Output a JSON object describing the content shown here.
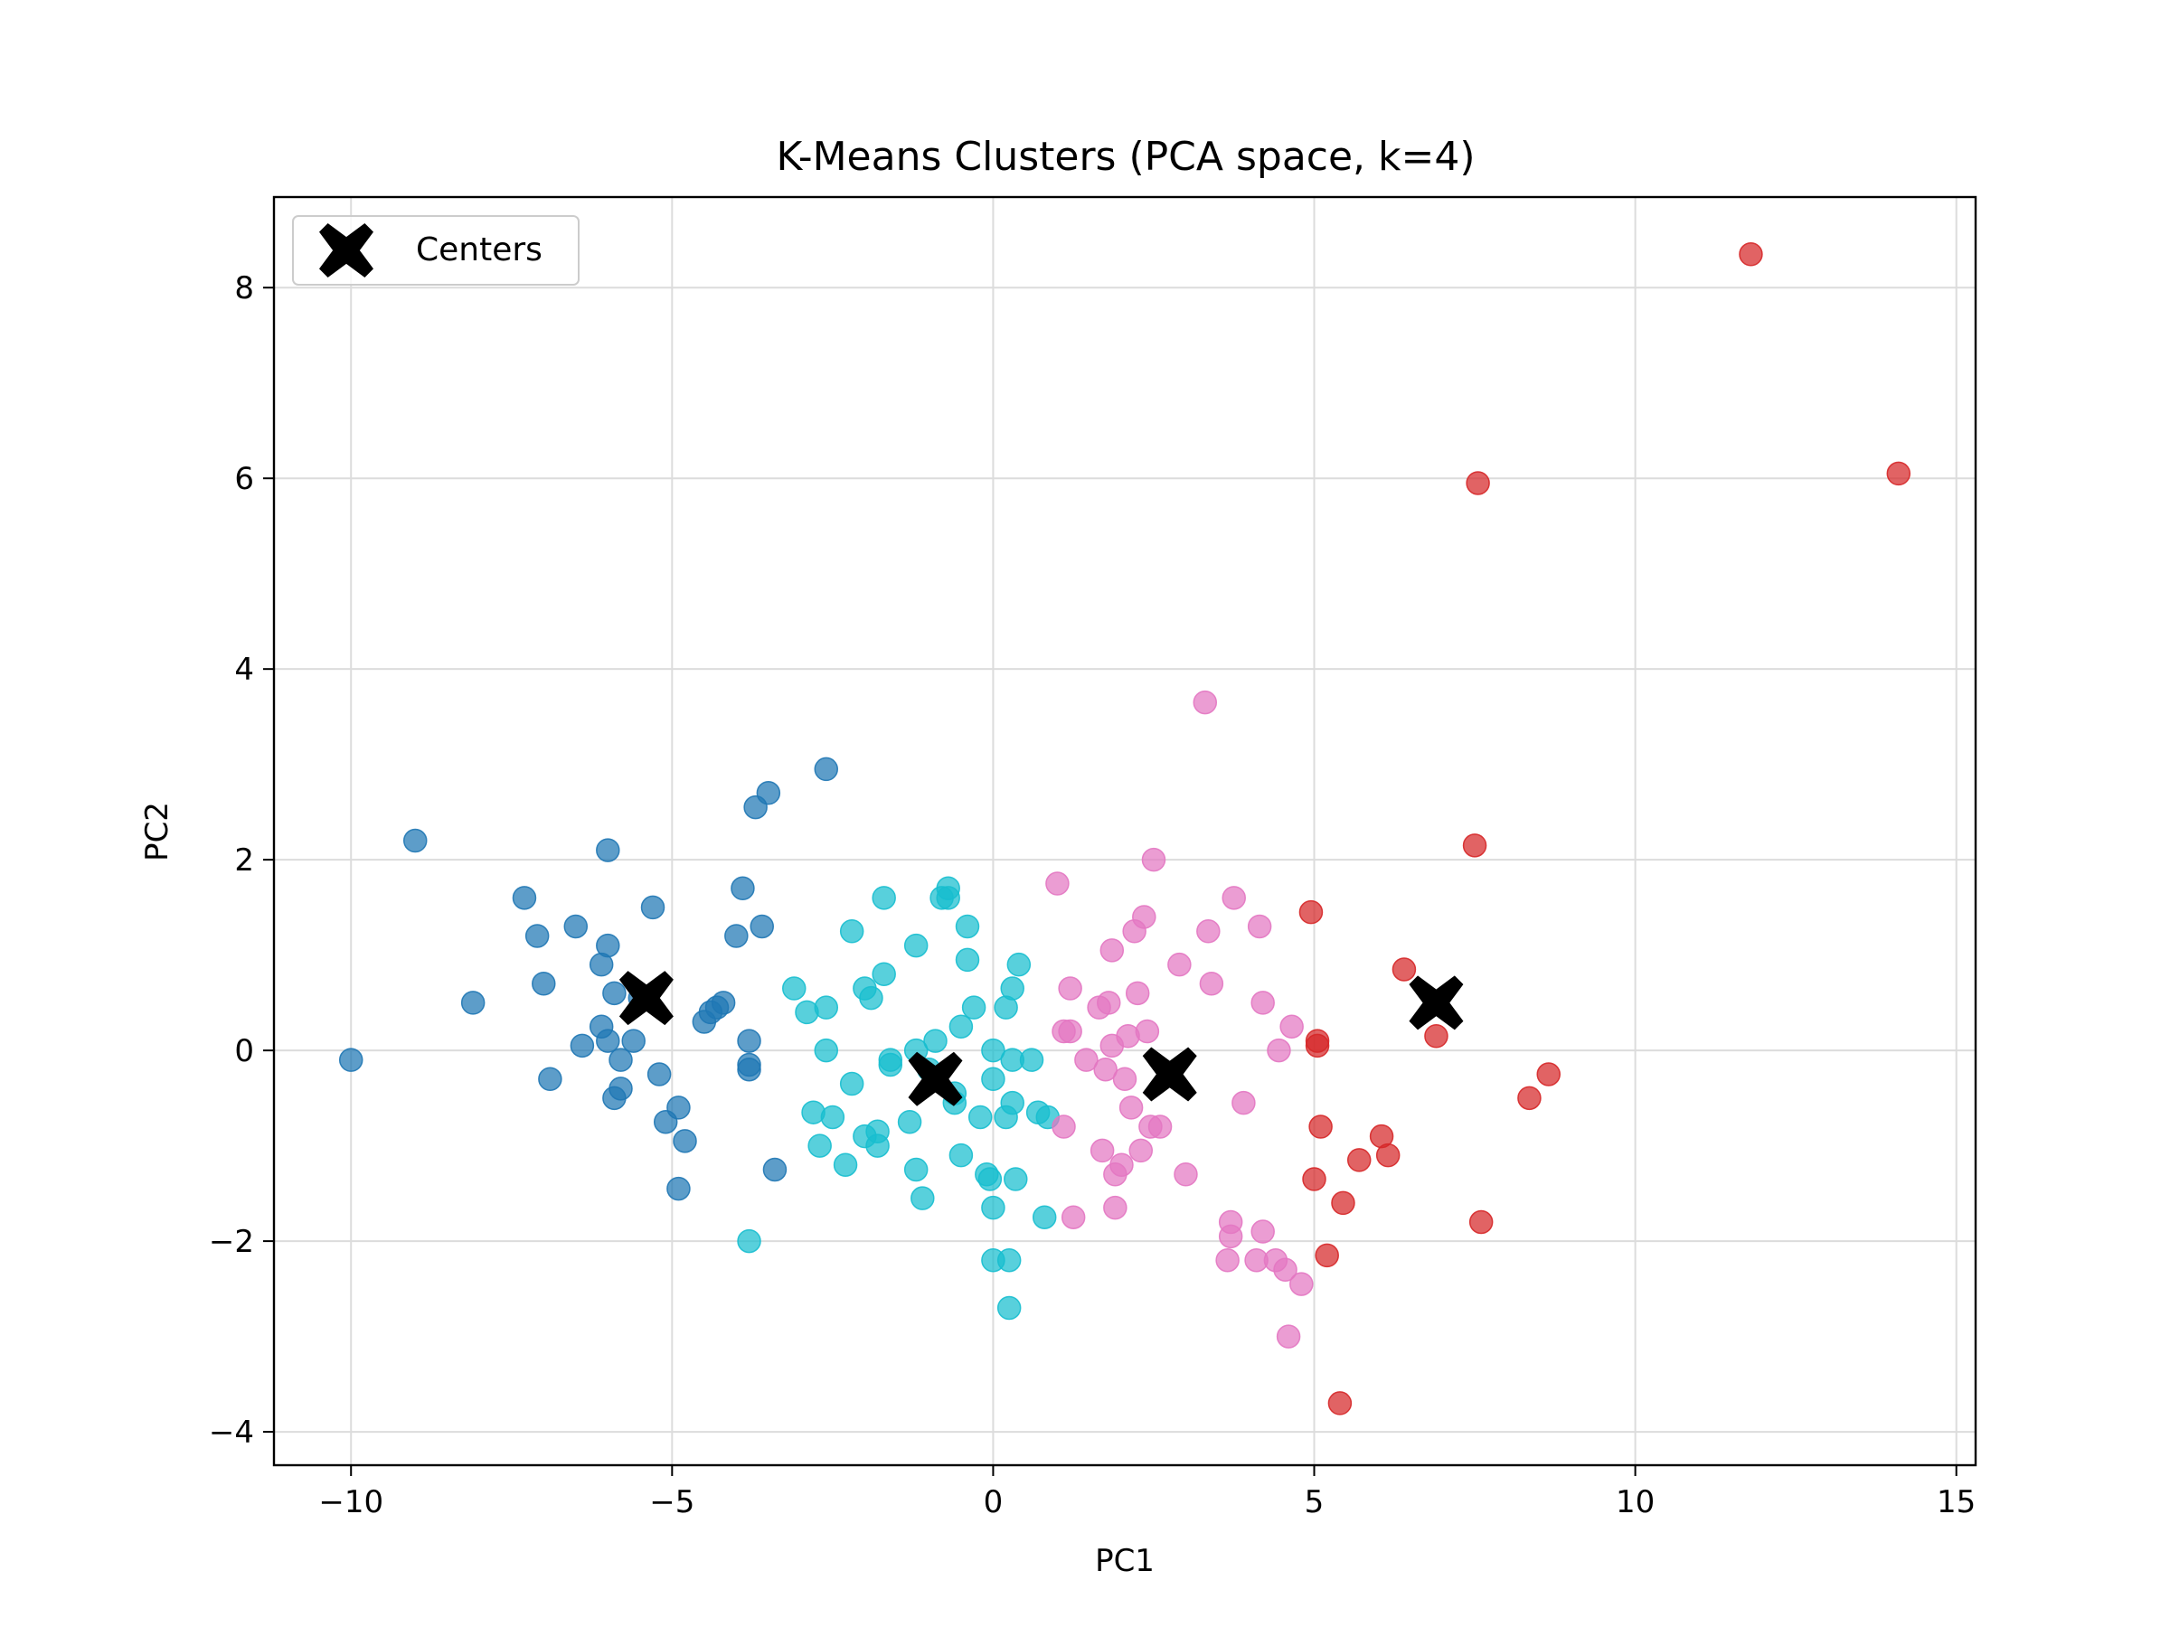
{
  "chart_data": {
    "type": "scatter",
    "title": "K-Means Clusters (PCA space, k=4)",
    "xlabel": "PC1",
    "ylabel": "PC2",
    "xlim": [
      -11.2,
      15.3
    ],
    "ylim": [
      -4.35,
      8.95
    ],
    "xticks": [
      -10,
      -5,
      0,
      5,
      10,
      15
    ],
    "xtick_labels": [
      "−10",
      "−5",
      "0",
      "5",
      "10",
      "15"
    ],
    "yticks": [
      -4,
      -2,
      0,
      2,
      4,
      6,
      8
    ],
    "ytick_labels": [
      "−4",
      "−2",
      "0",
      "2",
      "4",
      "6",
      "8"
    ],
    "grid": true,
    "legend": {
      "position": "top-left",
      "entries": [
        "Centers"
      ]
    },
    "colors": {
      "cluster_0": "#1f77b4",
      "cluster_1": "#17becf",
      "cluster_2": "#e377c2",
      "cluster_3": "#d62728",
      "centers": "#000000"
    },
    "series": [
      {
        "cluster": 0,
        "color": "#1f77b4",
        "points": [
          [
            -10.0,
            -0.1
          ],
          [
            -9.0,
            2.2
          ],
          [
            -8.1,
            0.5
          ],
          [
            -7.3,
            1.6
          ],
          [
            -7.1,
            1.2
          ],
          [
            -7.0,
            0.7
          ],
          [
            -6.9,
            -0.3
          ],
          [
            -6.5,
            1.3
          ],
          [
            -6.4,
            0.05
          ],
          [
            -6.0,
            2.1
          ],
          [
            -6.0,
            1.1
          ],
          [
            -6.1,
            0.9
          ],
          [
            -6.1,
            0.25
          ],
          [
            -5.9,
            0.6
          ],
          [
            -6.0,
            0.1
          ],
          [
            -5.8,
            -0.1
          ],
          [
            -5.9,
            -0.5
          ],
          [
            -5.8,
            -0.4
          ],
          [
            -5.6,
            0.1
          ],
          [
            -5.5,
            0.55
          ],
          [
            -5.3,
            1.5
          ],
          [
            -5.2,
            -0.25
          ],
          [
            -5.1,
            -0.75
          ],
          [
            -4.9,
            -0.6
          ],
          [
            -4.8,
            -0.95
          ],
          [
            -4.9,
            -1.45
          ],
          [
            -4.5,
            0.3
          ],
          [
            -4.4,
            0.4
          ],
          [
            -4.3,
            0.45
          ],
          [
            -4.2,
            0.5
          ],
          [
            -4.0,
            1.2
          ],
          [
            -3.9,
            1.7
          ],
          [
            -3.8,
            0.1
          ],
          [
            -3.8,
            -0.15
          ],
          [
            -3.8,
            -0.2
          ],
          [
            -3.6,
            1.3
          ],
          [
            -3.7,
            2.55
          ],
          [
            -3.5,
            2.7
          ],
          [
            -3.4,
            -1.25
          ],
          [
            -2.6,
            2.95
          ]
        ]
      },
      {
        "cluster": 1,
        "color": "#17becf",
        "points": [
          [
            -3.8,
            -2.0
          ],
          [
            -3.1,
            0.65
          ],
          [
            -2.9,
            0.4
          ],
          [
            -2.8,
            -0.65
          ],
          [
            -2.7,
            -1.0
          ],
          [
            -2.6,
            0.45
          ],
          [
            -2.6,
            0.0
          ],
          [
            -2.5,
            -0.7
          ],
          [
            -2.3,
            -1.2
          ],
          [
            -2.2,
            1.25
          ],
          [
            -2.2,
            -0.35
          ],
          [
            -2.0,
            0.65
          ],
          [
            -1.9,
            0.55
          ],
          [
            -2.0,
            -0.9
          ],
          [
            -1.8,
            -0.85
          ],
          [
            -1.8,
            -1.0
          ],
          [
            -1.7,
            1.6
          ],
          [
            -1.7,
            0.8
          ],
          [
            -1.6,
            -0.1
          ],
          [
            -1.6,
            -0.15
          ],
          [
            -1.3,
            -0.75
          ],
          [
            -1.2,
            1.1
          ],
          [
            -1.2,
            0.0
          ],
          [
            -1.2,
            -1.25
          ],
          [
            -1.1,
            -1.55
          ],
          [
            -1.0,
            -0.2
          ],
          [
            -0.9,
            0.1
          ],
          [
            -0.8,
            1.6
          ],
          [
            -0.7,
            1.6
          ],
          [
            -0.7,
            1.7
          ],
          [
            -0.6,
            -0.45
          ],
          [
            -0.6,
            -0.55
          ],
          [
            -0.5,
            -1.1
          ],
          [
            -0.5,
            0.25
          ],
          [
            -0.4,
            1.3
          ],
          [
            -0.4,
            0.95
          ],
          [
            -0.3,
            0.45
          ],
          [
            -0.2,
            -0.7
          ],
          [
            -0.1,
            -1.3
          ],
          [
            -0.05,
            -1.35
          ],
          [
            0.0,
            -1.65
          ],
          [
            0.0,
            -0.3
          ],
          [
            0.0,
            0.0
          ],
          [
            0.2,
            -0.7
          ],
          [
            0.2,
            0.45
          ],
          [
            0.3,
            0.65
          ],
          [
            0.3,
            -0.1
          ],
          [
            0.3,
            -0.55
          ],
          [
            0.35,
            -1.35
          ],
          [
            0.4,
            0.9
          ],
          [
            0.6,
            -0.1
          ],
          [
            0.7,
            -0.65
          ],
          [
            0.8,
            -1.75
          ],
          [
            0.85,
            -0.7
          ],
          [
            0.0,
            -2.2
          ],
          [
            0.25,
            -2.2
          ],
          [
            0.25,
            -2.7
          ]
        ]
      },
      {
        "cluster": 2,
        "color": "#e377c2",
        "points": [
          [
            1.0,
            1.75
          ],
          [
            1.1,
            0.2
          ],
          [
            1.2,
            0.65
          ],
          [
            1.2,
            0.2
          ],
          [
            1.1,
            -0.8
          ],
          [
            1.25,
            -1.75
          ],
          [
            1.45,
            -0.1
          ],
          [
            1.65,
            0.45
          ],
          [
            1.7,
            -1.05
          ],
          [
            1.75,
            -0.2
          ],
          [
            1.8,
            0.5
          ],
          [
            1.85,
            0.05
          ],
          [
            1.85,
            1.05
          ],
          [
            1.9,
            -1.3
          ],
          [
            1.9,
            -1.65
          ],
          [
            2.0,
            -1.2
          ],
          [
            2.05,
            -0.3
          ],
          [
            2.1,
            0.15
          ],
          [
            2.15,
            -0.6
          ],
          [
            2.2,
            1.25
          ],
          [
            2.25,
            0.6
          ],
          [
            2.3,
            -1.05
          ],
          [
            2.35,
            1.4
          ],
          [
            2.4,
            0.2
          ],
          [
            2.5,
            2.0
          ],
          [
            2.45,
            -0.8
          ],
          [
            2.6,
            -0.8
          ],
          [
            2.9,
            0.9
          ],
          [
            3.0,
            -1.3
          ],
          [
            3.3,
            3.65
          ],
          [
            3.35,
            1.25
          ],
          [
            3.4,
            0.7
          ],
          [
            3.65,
            -2.2
          ],
          [
            3.7,
            -1.8
          ],
          [
            3.7,
            -1.95
          ],
          [
            3.75,
            1.6
          ],
          [
            3.9,
            -0.55
          ],
          [
            4.1,
            -2.2
          ],
          [
            4.15,
            1.3
          ],
          [
            4.2,
            0.5
          ],
          [
            4.2,
            -1.9
          ],
          [
            4.4,
            -2.2
          ],
          [
            4.45,
            0.0
          ],
          [
            4.55,
            -2.3
          ],
          [
            4.65,
            0.25
          ],
          [
            4.6,
            -3.0
          ],
          [
            4.8,
            -2.45
          ]
        ]
      },
      {
        "cluster": 3,
        "color": "#d62728",
        "points": [
          [
            4.95,
            1.45
          ],
          [
            5.0,
            -1.35
          ],
          [
            5.05,
            0.1
          ],
          [
            5.05,
            0.05
          ],
          [
            5.1,
            -0.8
          ],
          [
            5.2,
            -2.15
          ],
          [
            5.4,
            -3.7
          ],
          [
            5.45,
            -1.6
          ],
          [
            5.7,
            -1.15
          ],
          [
            6.05,
            -0.9
          ],
          [
            6.15,
            -1.1
          ],
          [
            6.4,
            0.85
          ],
          [
            6.9,
            0.15
          ],
          [
            7.5,
            2.15
          ],
          [
            7.55,
            5.95
          ],
          [
            7.6,
            -1.8
          ],
          [
            8.35,
            -0.5
          ],
          [
            8.65,
            -0.25
          ],
          [
            11.8,
            8.35
          ],
          [
            14.1,
            6.05
          ]
        ]
      }
    ],
    "centers": [
      [
        -5.4,
        0.55
      ],
      [
        -0.9,
        -0.3
      ],
      [
        2.75,
        -0.25
      ],
      [
        6.9,
        0.5
      ]
    ]
  }
}
